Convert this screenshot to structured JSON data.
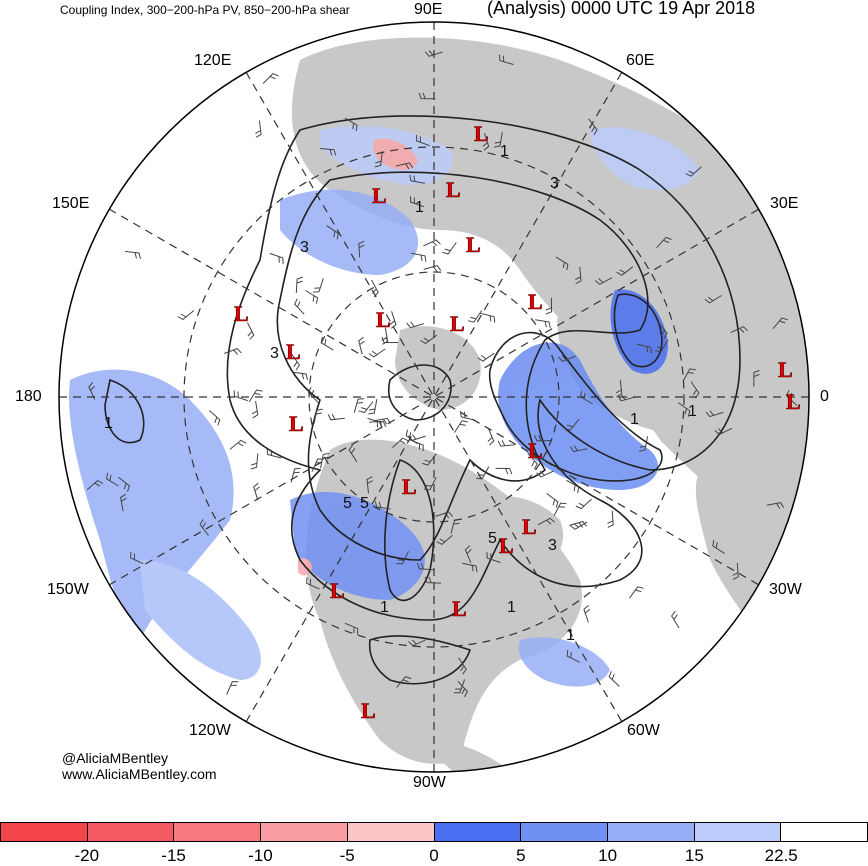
{
  "header": {
    "field_title": "Coupling Index, 300−200-hPa PV, 850−200-hPa shear",
    "valid_time": "(Analysis) 0000 UTC 19 Apr 2018"
  },
  "longitude_labels": {
    "top": "90E",
    "top_left": "120E",
    "top_right": "60E",
    "upper_left": "150E",
    "upper_right": "30E",
    "left": "180",
    "right": "0",
    "lower_left": "150W",
    "lower_right": "30W",
    "bottom_left": "120W",
    "bottom_right": "60W",
    "bottom": "90W"
  },
  "credits": {
    "handle": "@AliciaMBentley",
    "website": "www.AliciaMBentley.com"
  },
  "contour_labels": [
    "1",
    "1",
    "1",
    "1",
    "3",
    "3",
    "3",
    "3",
    "5",
    "5",
    "5",
    "1",
    "1",
    "1",
    "1"
  ],
  "low_marker_label": "L",
  "low_marker_count": 22,
  "colorbar": {
    "tick_labels": [
      "-20",
      "-15",
      "-10",
      "-5",
      "0",
      "5",
      "10",
      "15",
      "22.5"
    ],
    "colors": [
      "#f4454b",
      "#f55a60",
      "#f7797e",
      "#fa9ea2",
      "#fcc6c8",
      "#4a6ff0",
      "#7190f3",
      "#97aef6",
      "#bccbf9",
      "#ffffff"
    ]
  },
  "map_colors": {
    "land": "#c8c8c8",
    "ocean": "#ffffff",
    "coupling_blue": "#6a8df2",
    "coupling_light_blue": "#a9bff8",
    "coupling_pink": "#f7a8ab",
    "low_marker": "#e00000"
  }
}
